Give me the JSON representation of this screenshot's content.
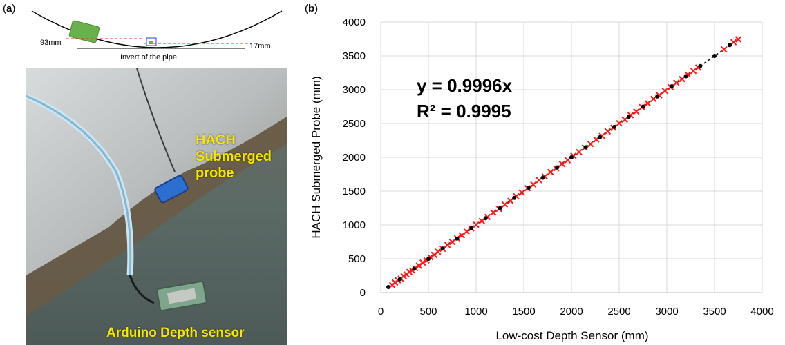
{
  "panels": {
    "a_label": "a",
    "b_label": "b"
  },
  "schematic": {
    "left_depth": "93mm",
    "right_depth": "17mm",
    "invert_label": "Invert of the pipe"
  },
  "photo": {
    "hach_label": [
      "HACH",
      "Submerged",
      "probe"
    ],
    "arduino_label": "Arduino Depth sensor"
  },
  "colors": {
    "fit_line": "#000000",
    "markers_red": "#ff1a1a",
    "markers_black": "#000000",
    "grid": "#d9d9d9",
    "label_yellow": "#f5e600",
    "box_green": "#6ab04c"
  },
  "chart_data": {
    "type": "scatter",
    "xlabel": "Low-cost Depth Sensor (mm)",
    "ylabel": "HACH Submerged Probe (mm)",
    "xlim": [
      0,
      4000
    ],
    "ylim": [
      0,
      4000
    ],
    "xticks": [
      0,
      500,
      1000,
      1500,
      2000,
      2500,
      3000,
      3500,
      4000
    ],
    "yticks": [
      0,
      500,
      1000,
      1500,
      2000,
      2500,
      3000,
      3500,
      4000
    ],
    "grid": true,
    "annotations": [
      "y = 0.9996x",
      "R² = 0.9995"
    ],
    "fit": {
      "slope": 0.9996,
      "intercept": 0
    },
    "series": [
      {
        "marker": "x",
        "color": "#ff1a1a",
        "x": [
          120,
          150,
          180,
          210,
          240,
          270,
          300,
          330,
          360,
          400,
          440,
          480,
          520,
          560,
          600,
          650,
          700,
          750,
          800,
          850,
          900,
          950,
          1000,
          1060,
          1120,
          1180,
          1240,
          1300,
          1360,
          1420,
          1480,
          1540,
          1600,
          1660,
          1720,
          1780,
          1840,
          1900,
          1960,
          2020,
          2080,
          2140,
          2200,
          2260,
          2320,
          2380,
          2440,
          2500,
          2560,
          2620,
          2680,
          2740,
          2800,
          2860,
          2920,
          2980,
          3040,
          3100,
          3160,
          3220,
          3280,
          3330,
          3600,
          3700,
          3750
        ],
        "y": [
          110,
          148,
          182,
          205,
          243,
          268,
          304,
          326,
          362,
          398,
          444,
          476,
          523,
          558,
          604,
          647,
          704,
          748,
          803,
          846,
          902,
          948,
          1004,
          1058,
          1118,
          1184,
          1238,
          1303,
          1356,
          1424,
          1477,
          1543,
          1598,
          1663,
          1716,
          1782,
          1838,
          1903,
          1957,
          2024,
          2077,
          2143,
          2197,
          2263,
          2317,
          2384,
          2437,
          2503,
          2557,
          2623,
          2677,
          2743,
          2797,
          2863,
          2917,
          2983,
          3037,
          3103,
          3157,
          3223,
          3277,
          3327,
          3596,
          3702,
          3745
        ]
      },
      {
        "marker": "circle",
        "color": "#000000",
        "x": [
          80,
          200,
          350,
          500,
          650,
          800,
          950,
          1100,
          1250,
          1400,
          1550,
          1700,
          1850,
          2000,
          2150,
          2300,
          2450,
          2600,
          2750,
          2900,
          3050,
          3200,
          3350,
          3500,
          3660
        ],
        "y": [
          82,
          198,
          352,
          499,
          651,
          798,
          951,
          1100,
          1249,
          1401,
          1550,
          1699,
          1851,
          2000,
          2149,
          2300,
          2450,
          2599,
          2749,
          2900,
          3050,
          3199,
          3349,
          3500,
          3660
        ]
      }
    ]
  }
}
